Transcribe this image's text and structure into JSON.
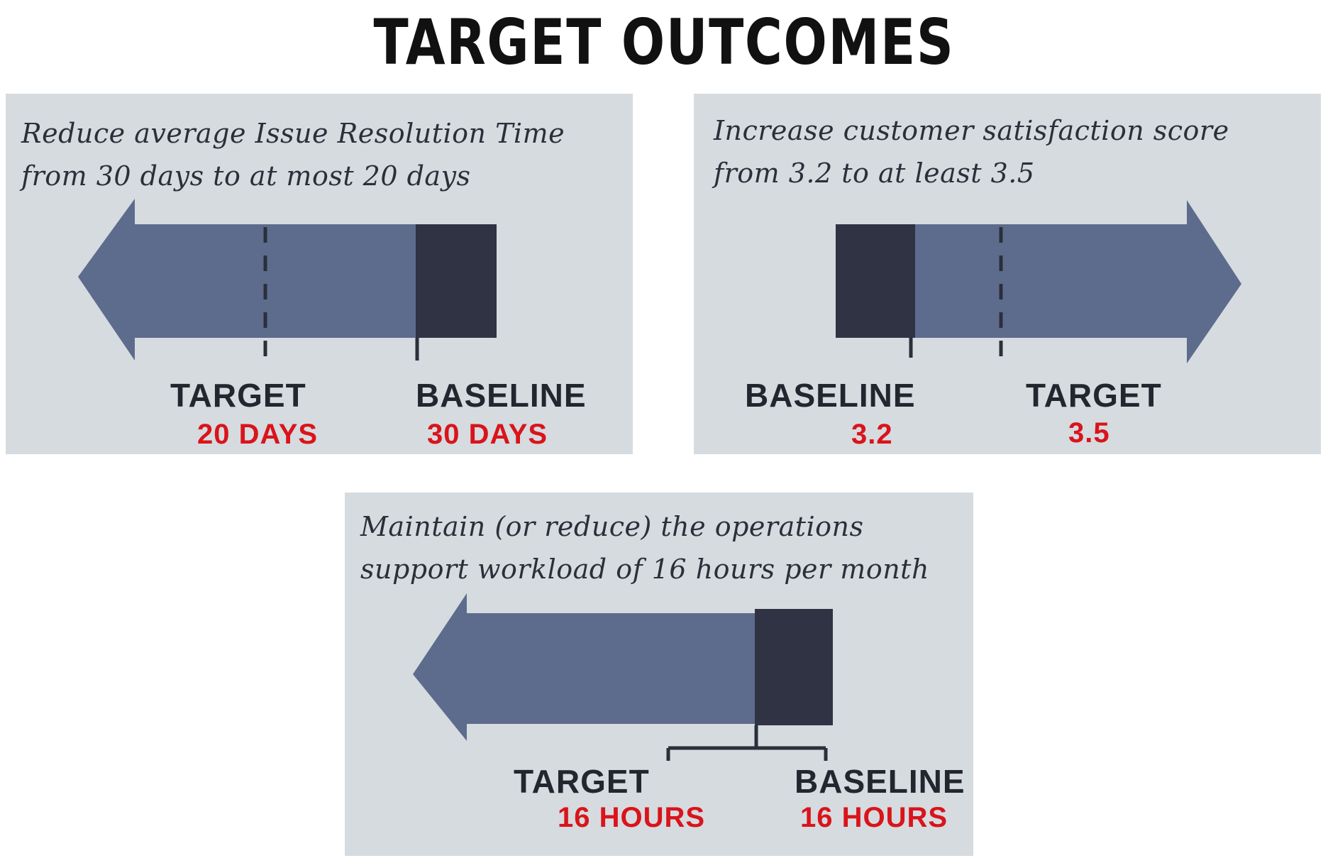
{
  "title": "TARGET OUTCOMES",
  "colors": {
    "arrow": "#5d6c8d",
    "baseline_block": "#2f3344",
    "card": "#d6dbdf",
    "value_text": "#d9141b"
  },
  "outcomes": [
    {
      "description_lines": [
        "Reduce average Issue Resolution Time",
        "from 30 days to at most 20 days"
      ],
      "direction": "left",
      "target": {
        "label": "TARGET",
        "value": "20 DAYS"
      },
      "baseline": {
        "label": "BASELINE",
        "value": "30 DAYS"
      }
    },
    {
      "description_lines": [
        "Increase customer satisfaction score",
        "from 3.2 to at least 3.5"
      ],
      "direction": "right",
      "baseline": {
        "label": "BASELINE",
        "value": "3.2"
      },
      "target": {
        "label": "TARGET",
        "value": "3.5"
      }
    },
    {
      "description_lines": [
        "Maintain (or reduce) the operations",
        "support workload of 16 hours per month"
      ],
      "direction": "left",
      "target": {
        "label": "TARGET",
        "value": "16 HOURS"
      },
      "baseline": {
        "label": "BASELINE",
        "value": "16 HOURS"
      }
    }
  ]
}
